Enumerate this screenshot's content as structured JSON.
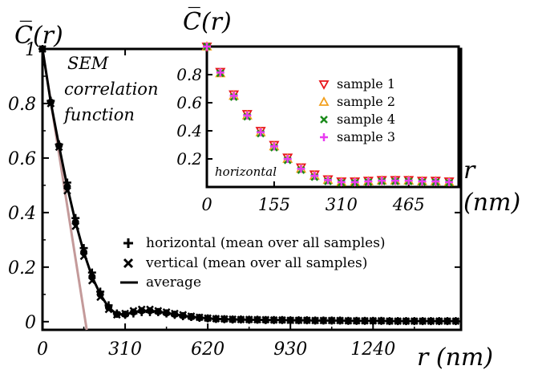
{
  "chart_data": [
    {
      "type": "line",
      "ylabel": "C̅(r)",
      "xlabel": "r (nm)",
      "annotation": [
        "SEM",
        "correlation",
        "function"
      ],
      "xlim": [
        0,
        1570
      ],
      "ylim": [
        -0.03,
        1.0
      ],
      "x_ticks": [
        0,
        310,
        620,
        930,
        1240
      ],
      "x_tick_labels": [
        "0",
        "310",
        "620",
        "930",
        "1240"
      ],
      "y_ticks": [
        0,
        0.2,
        0.4,
        0.6,
        0.8,
        1
      ],
      "y_tick_labels": [
        "0",
        "0.2",
        "0.4",
        "0.6",
        "0.8",
        "1"
      ],
      "grid": false,
      "legend_position": "bottom-center",
      "series": [
        {
          "name": "horizontal (mean over all samples)",
          "marker": "plus",
          "x": [
            0,
            31,
            62,
            93,
            124,
            155,
            186,
            217,
            248,
            279,
            310,
            341,
            372,
            403,
            434,
            465,
            496,
            527,
            558,
            589,
            620,
            651,
            682,
            713,
            744,
            775,
            806,
            837,
            868,
            899,
            930,
            961,
            992,
            1023,
            1054,
            1085,
            1116,
            1147,
            1178,
            1209,
            1240,
            1271,
            1302,
            1333,
            1364,
            1395,
            1426,
            1457,
            1488,
            1519,
            1550
          ],
          "y": [
            1.0,
            0.81,
            0.65,
            0.51,
            0.38,
            0.27,
            0.18,
            0.11,
            0.06,
            0.03,
            0.025,
            0.03,
            0.035,
            0.035,
            0.035,
            0.03,
            0.025,
            0.02,
            0.017,
            0.014,
            0.012,
            0.01,
            0.009,
            0.008,
            0.008,
            0.007,
            0.007,
            0.006,
            0.006,
            0.006,
            0.005,
            0.005,
            0.005,
            0.004,
            0.004,
            0.004,
            0.004,
            0.003,
            0.003,
            0.003,
            0.003,
            0.003,
            0.002,
            0.002,
            0.002,
            0.002,
            0.002,
            0.002,
            0.002,
            0.002,
            0.002
          ]
        },
        {
          "name": "vertical (mean over all samples)",
          "marker": "cross",
          "x": [
            0,
            31,
            62,
            93,
            124,
            155,
            186,
            217,
            248,
            279,
            310,
            341,
            372,
            403,
            434,
            465,
            496,
            527,
            558,
            589,
            620,
            651,
            682,
            713,
            744,
            775,
            806,
            837,
            868,
            899,
            930,
            961,
            992,
            1023,
            1054,
            1085,
            1116,
            1147,
            1178,
            1209,
            1240,
            1271,
            1302,
            1333,
            1364,
            1395,
            1426,
            1457,
            1488,
            1519,
            1550
          ],
          "y": [
            1.0,
            0.8,
            0.64,
            0.48,
            0.35,
            0.24,
            0.15,
            0.09,
            0.045,
            0.025,
            0.03,
            0.04,
            0.045,
            0.045,
            0.04,
            0.035,
            0.03,
            0.025,
            0.02,
            0.016,
            0.013,
            0.011,
            0.01,
            0.009,
            0.008,
            0.008,
            0.007,
            0.007,
            0.006,
            0.006,
            0.005,
            0.005,
            0.005,
            0.004,
            0.004,
            0.004,
            0.004,
            0.003,
            0.003,
            0.003,
            0.003,
            0.003,
            0.002,
            0.002,
            0.002,
            0.002,
            0.002,
            0.002,
            0.002,
            0.002,
            0.002
          ]
        },
        {
          "name": "average",
          "marker": "circle",
          "x": [
            0,
            31,
            62,
            93,
            124,
            155,
            186,
            217,
            248,
            279,
            310,
            341,
            372,
            403,
            434,
            465,
            496,
            527,
            558,
            589,
            620,
            651,
            682,
            713,
            744,
            775,
            806,
            837,
            868,
            899,
            930,
            961,
            992,
            1023,
            1054,
            1085,
            1116,
            1147,
            1178,
            1209,
            1240,
            1271,
            1302,
            1333,
            1364,
            1395,
            1426,
            1457,
            1488,
            1519,
            1550
          ],
          "y": [
            1.0,
            0.805,
            0.645,
            0.495,
            0.365,
            0.255,
            0.165,
            0.1,
            0.052,
            0.027,
            0.027,
            0.035,
            0.04,
            0.04,
            0.037,
            0.032,
            0.027,
            0.022,
            0.018,
            0.015,
            0.012,
            0.01,
            0.009,
            0.008,
            0.008,
            0.007,
            0.007,
            0.006,
            0.006,
            0.006,
            0.005,
            0.005,
            0.005,
            0.004,
            0.004,
            0.004,
            0.004,
            0.003,
            0.003,
            0.003,
            0.003,
            0.003,
            0.002,
            0.002,
            0.002,
            0.002,
            0.002,
            0.002,
            0.002,
            0.002,
            0.002
          ]
        },
        {
          "name": "",
          "style": "tangent-line",
          "color": "#c49a9a",
          "x": [
            0,
            166
          ],
          "y": [
            1.0,
            -0.03
          ]
        }
      ]
    },
    {
      "type": "scatter",
      "ylabel": "C̅(r)",
      "xlabel": "r (nm)",
      "annotation": "horizontal",
      "xlim": [
        0,
        580
      ],
      "ylim": [
        0,
        1.0
      ],
      "x_ticks": [
        0,
        155,
        310,
        465
      ],
      "x_tick_labels": [
        "0",
        "155",
        "310",
        "465"
      ],
      "y_ticks": [
        0.2,
        0.4,
        0.6,
        0.8
      ],
      "y_tick_labels": [
        "0.2",
        "0.4",
        "0.6",
        "0.8"
      ],
      "grid": false,
      "legend_position": "top-right",
      "x": [
        0,
        31,
        62,
        93,
        124,
        155,
        186,
        217,
        248,
        279,
        310,
        341,
        372,
        403,
        434,
        465,
        496,
        527,
        558
      ],
      "series": [
        {
          "name": "sample 1",
          "marker": "triangle-down",
          "color": "#e8141a",
          "y": [
            1.0,
            0.82,
            0.66,
            0.52,
            0.4,
            0.3,
            0.21,
            0.14,
            0.09,
            0.055,
            0.04,
            0.04,
            0.045,
            0.05,
            0.05,
            0.05,
            0.045,
            0.045,
            0.04
          ]
        },
        {
          "name": "sample 2",
          "marker": "triangle-up",
          "color": "#f2a01e",
          "y": [
            1.0,
            0.81,
            0.65,
            0.51,
            0.39,
            0.29,
            0.2,
            0.13,
            0.08,
            0.05,
            0.035,
            0.035,
            0.04,
            0.045,
            0.045,
            0.045,
            0.04,
            0.04,
            0.035
          ]
        },
        {
          "name": "sample 4",
          "marker": "cross",
          "color": "#1a8a1a",
          "y": [
            1.0,
            0.81,
            0.64,
            0.5,
            0.38,
            0.28,
            0.19,
            0.12,
            0.07,
            0.04,
            0.03,
            0.03,
            0.035,
            0.04,
            0.04,
            0.04,
            0.035,
            0.035,
            0.03
          ]
        },
        {
          "name": "sample 3",
          "marker": "plus",
          "color": "#e83cf0",
          "y": [
            1.0,
            0.815,
            0.65,
            0.51,
            0.39,
            0.29,
            0.2,
            0.13,
            0.08,
            0.05,
            0.035,
            0.035,
            0.04,
            0.045,
            0.045,
            0.045,
            0.04,
            0.04,
            0.035
          ]
        }
      ]
    }
  ]
}
